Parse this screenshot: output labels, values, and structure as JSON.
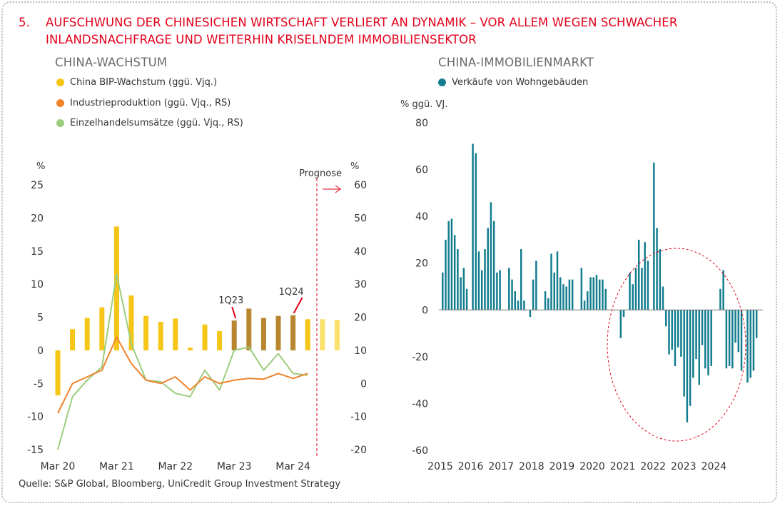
{
  "headline": {
    "number": "5.",
    "line1": "AUFSCHWUNG DER CHINESICHEN WIRTSCHAFT VERLIERT AN DYNAMIK – VOR ALLEM WEGEN SCHWACHER",
    "line2": "INLANDSNACHFRAGE UND WEITERHIN KRISELNDEM IMMOBILIENSEKTOR"
  },
  "source": "Quelle: S&P Global, Bloomberg, UniCredit Group Investment Strategy",
  "colors": {
    "accent_red": "#e2001a",
    "gdp_yellow": "#f5c518",
    "gdp_dark": "#b8862f",
    "gdp_forecast": "#fbe06a",
    "industry_orange": "#f0842c",
    "retail_green": "#9ccd7c",
    "property_teal": "#137d8f"
  },
  "chart_data": [
    {
      "type": "bar",
      "title": "CHINA-WACHSTUM",
      "legend": [
        {
          "label": "China BIP-Wachstum (ggü. Vjq.)",
          "color": "#f5c518"
        },
        {
          "label": "Industrieproduktion (ggü. Vjq., RS)",
          "color": "#f0842c"
        },
        {
          "label": "Einzelhandelsumsätze (ggü. Vjq., RS)",
          "color": "#9ccd7c"
        }
      ],
      "left_axis": {
        "unit": "%",
        "ylim": [
          -15,
          25
        ],
        "ticks": [
          25,
          20,
          15,
          10,
          5,
          0,
          -5,
          -10,
          -15
        ]
      },
      "right_axis": {
        "unit": "%",
        "ylim": [
          -20,
          60
        ],
        "ticks": [
          60,
          50,
          40,
          30,
          20,
          10,
          0,
          -10,
          -20
        ]
      },
      "x_tick_labels": [
        "Mar 20",
        "Mar 21",
        "Mar 22",
        "Mar 23",
        "Mar 24"
      ],
      "forecast_label": "Prognose",
      "annotations": [
        "1Q23",
        "1Q24"
      ],
      "series": [
        {
          "name": "China BIP-Wachstum (ggü. Vjq.)",
          "axis": "left",
          "type": "bar",
          "values": [
            -6.8,
            3.2,
            4.9,
            6.5,
            18.7,
            8.3,
            5.2,
            4.3,
            4.8,
            0.4,
            3.9,
            2.9,
            4.5,
            6.3,
            4.9,
            5.2,
            5.3,
            4.7,
            4.7,
            4.6
          ]
        },
        {
          "name": "Industrieproduktion (ggü. Vjq., RS)",
          "axis": "right",
          "type": "line",
          "values": [
            -9,
            0,
            2,
            4,
            14,
            6,
            1,
            0,
            2,
            -2,
            2,
            0,
            1,
            1.5,
            1.3,
            3,
            1.5,
            3
          ]
        },
        {
          "name": "Einzelhandelsumsätze (ggü. Vjq., RS)",
          "axis": "right",
          "type": "line",
          "values": [
            -20,
            -4,
            1,
            5,
            33,
            12,
            1,
            0.5,
            -3,
            -4,
            4,
            -2,
            10,
            11,
            4,
            9,
            3,
            2.5
          ]
        }
      ]
    },
    {
      "type": "bar",
      "title": "CHINA-IMMOBILIENMARKT",
      "legend": [
        {
          "label": "Verkäufe von Wohngebäuden",
          "color": "#137d8f"
        }
      ],
      "ylabel": "% ggü. VJ.",
      "ylim": [
        -60,
        80
      ],
      "y_ticks": [
        80,
        60,
        40,
        20,
        0,
        -20,
        -40,
        -60
      ],
      "x_tick_labels": [
        "2015",
        "2016",
        "2017",
        "2018",
        "2019",
        "2020",
        "2021",
        "2022",
        "2023",
        "2024"
      ],
      "series": [
        {
          "name": "Verkäufe von Wohngebäuden",
          "values": [
            16,
            30,
            38,
            39,
            32,
            26,
            14,
            18,
            9,
            0,
            71,
            67,
            25,
            17,
            26,
            35,
            46,
            38,
            16,
            17,
            0,
            0,
            18,
            13,
            8,
            4,
            26,
            4,
            0,
            -3,
            13,
            21,
            0,
            0,
            8,
            5,
            24,
            16,
            25,
            14,
            11,
            10,
            13,
            13,
            0,
            0,
            18,
            4,
            8,
            14,
            14,
            15,
            13,
            13,
            9,
            0,
            0,
            0,
            0,
            -12,
            -3,
            0,
            16,
            11,
            18,
            30,
            18,
            29,
            21,
            0,
            63,
            35,
            26,
            10,
            -7,
            -19,
            -17,
            -24,
            -16,
            -20,
            -37,
            -48,
            -41,
            -29,
            -21,
            -32,
            -15,
            -25,
            -28,
            -24,
            0,
            0,
            9,
            17,
            -25,
            -24,
            -25,
            -14,
            -18,
            -26,
            0,
            -31,
            -29,
            -26,
            -12
          ]
        }
      ]
    }
  ]
}
